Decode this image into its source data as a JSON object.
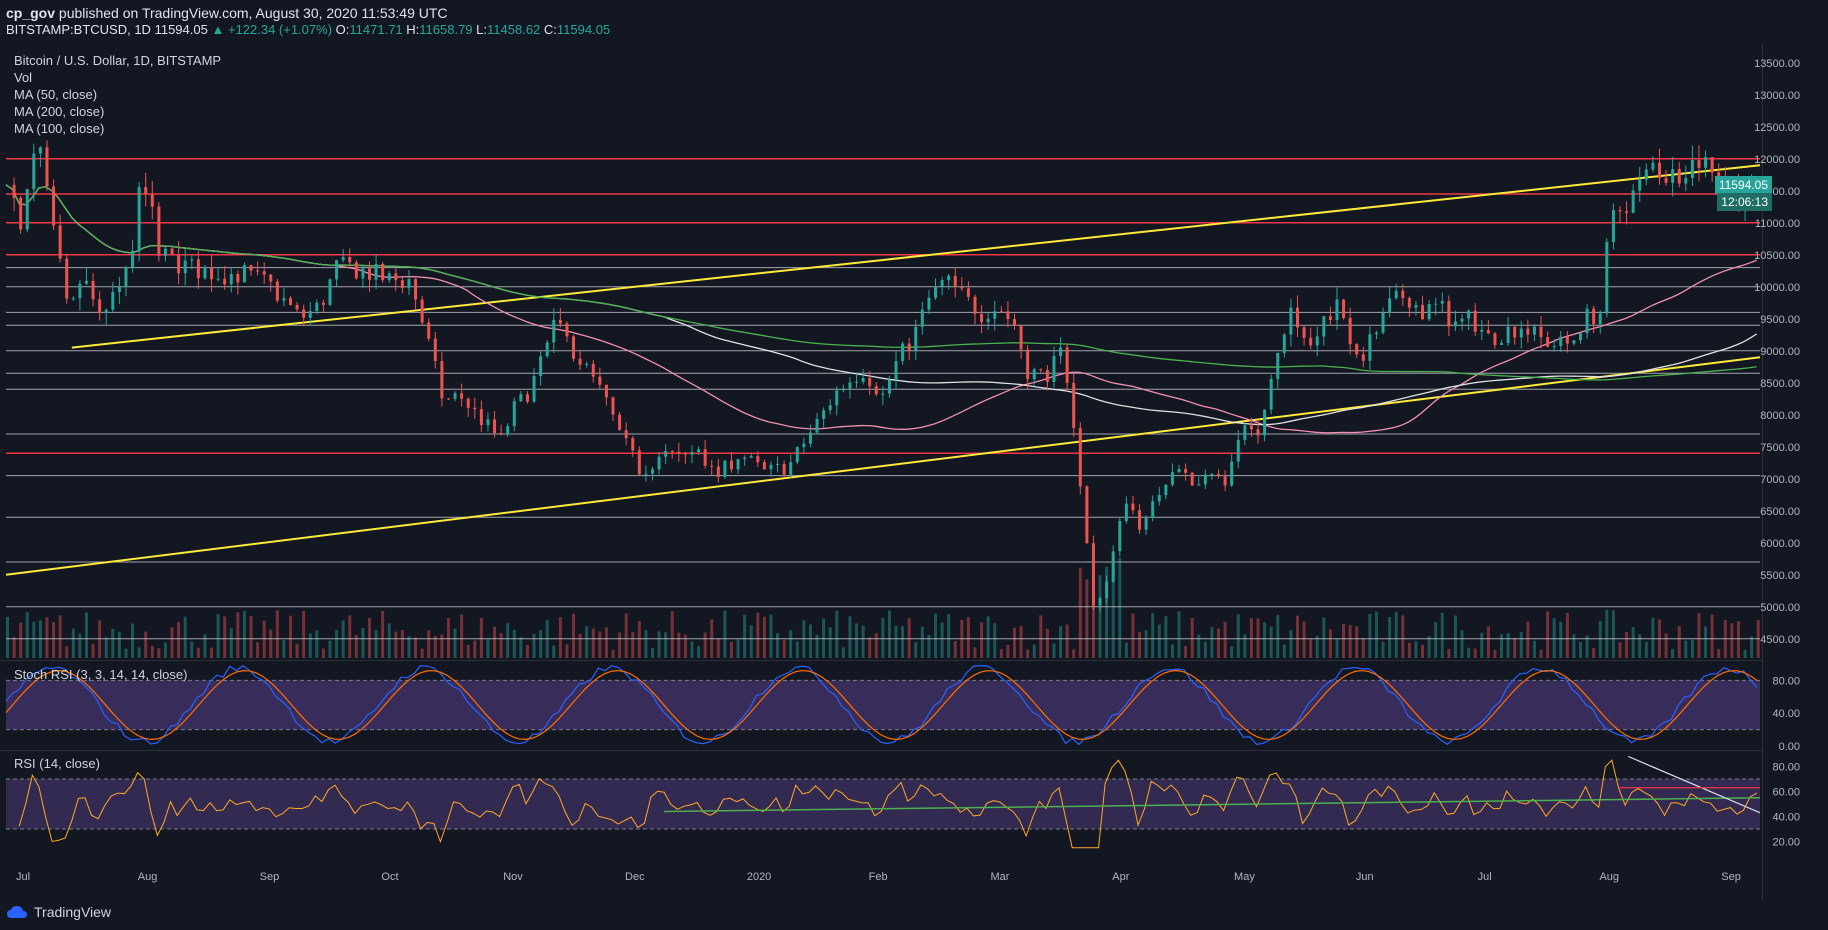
{
  "header": {
    "author": "cp_gov",
    "published_text": "published on TradingView.com, August 30, 2020 11:53:49 UTC",
    "symbol": "BITSTAMP:BTCUSD, 1D",
    "last": "11594.05",
    "change": "▲ +122.34 (+1.07%)",
    "o_label": "O:",
    "o_value": "11471.71",
    "h_label": "H:",
    "h_value": "11658.79",
    "l_label": "L:",
    "l_value": "11458.62",
    "c_label": "C:",
    "c_value": "11594.05"
  },
  "legend": {
    "title": "Bitcoin / U.S. Dollar, 1D, BITSTAMP",
    "vol": "Vol",
    "ma50": "MA (50, close)",
    "ma200": "MA (200, close)",
    "ma100": "MA (100, close)"
  },
  "price_badge": {
    "price": "11594.05",
    "timer": "12:06:13"
  },
  "stoch_label": "Stoch RSI (3, 3, 14, 14, close)",
  "rsi_label": "RSI (14, close)",
  "footer": {
    "brand": "TradingView"
  },
  "colors": {
    "up": "#26a69a",
    "down": "#ef5350",
    "yellow": "#ffeb3b",
    "red_line": "#f23645",
    "ma50": "#f48fb1",
    "ma100": "#e0e0e0",
    "ma200": "#4caf50",
    "stoch_k": "#2962ff",
    "stoch_d": "#ff6d00",
    "rsi": "#ffa726"
  },
  "chart_data": {
    "type": "candlestick",
    "price_axis": {
      "ticks": [
        4500,
        5000,
        5500,
        6000,
        6500,
        7000,
        7500,
        8000,
        8500,
        9000,
        9500,
        10000,
        10500,
        11000,
        11500,
        12000,
        12500,
        13000,
        13500
      ],
      "range": [
        4200,
        13700
      ]
    },
    "x_axis": {
      "labels": [
        "Jul",
        "Aug",
        "Sep",
        "Oct",
        "Nov",
        "Dec",
        "2020",
        "Feb",
        "Mar",
        "Apr",
        "May",
        "Jun",
        "Jul",
        "Aug",
        "Sep"
      ]
    },
    "close_path": [
      [
        0,
        11800
      ],
      [
        8,
        10800
      ],
      [
        18,
        12300
      ],
      [
        28,
        10800
      ],
      [
        38,
        9600
      ],
      [
        45,
        10100
      ],
      [
        55,
        9600
      ],
      [
        65,
        9800
      ],
      [
        75,
        10300
      ],
      [
        82,
        11900
      ],
      [
        92,
        10500
      ],
      [
        110,
        10300
      ],
      [
        130,
        10200
      ],
      [
        145,
        10200
      ],
      [
        160,
        10000
      ],
      [
        178,
        9500
      ],
      [
        190,
        9700
      ],
      [
        200,
        10300
      ],
      [
        210,
        10300
      ],
      [
        222,
        10200
      ],
      [
        232,
        10100
      ],
      [
        245,
        10100
      ],
      [
        255,
        9200
      ],
      [
        265,
        8200
      ],
      [
        275,
        8300
      ],
      [
        285,
        8000
      ],
      [
        300,
        7600
      ],
      [
        308,
        8100
      ],
      [
        315,
        8300
      ],
      [
        323,
        8700
      ],
      [
        332,
        9400
      ],
      [
        342,
        9100
      ],
      [
        352,
        8700
      ],
      [
        362,
        8300
      ],
      [
        372,
        7700
      ],
      [
        385,
        7100
      ],
      [
        398,
        7400
      ],
      [
        410,
        7300
      ],
      [
        420,
        7500
      ],
      [
        430,
        7000
      ],
      [
        445,
        7400
      ],
      [
        460,
        7100
      ],
      [
        475,
        7200
      ],
      [
        490,
        7800
      ],
      [
        505,
        8400
      ],
      [
        520,
        8700
      ],
      [
        532,
        8300
      ],
      [
        540,
        8800
      ],
      [
        552,
        9300
      ],
      [
        560,
        9800
      ],
      [
        570,
        10100
      ],
      [
        582,
        9800
      ],
      [
        592,
        9600
      ],
      [
        602,
        9700
      ],
      [
        612,
        9400
      ],
      [
        620,
        8700
      ],
      [
        630,
        8600
      ],
      [
        640,
        8900
      ],
      [
        648,
        7900
      ],
      [
        660,
        5000
      ],
      [
        668,
        5400
      ],
      [
        680,
        6700
      ],
      [
        690,
        6200
      ],
      [
        700,
        6800
      ],
      [
        710,
        7300
      ],
      [
        722,
        6800
      ],
      [
        730,
        7200
      ],
      [
        740,
        6900
      ],
      [
        750,
        7700
      ],
      [
        760,
        7800
      ],
      [
        770,
        8800
      ],
      [
        780,
        9800
      ],
      [
        790,
        8900
      ],
      [
        800,
        9500
      ],
      [
        810,
        9800
      ],
      [
        820,
        8800
      ],
      [
        830,
        9200
      ],
      [
        840,
        9700
      ],
      [
        850,
        9900
      ],
      [
        860,
        9600
      ],
      [
        870,
        9700
      ],
      [
        880,
        9400
      ],
      [
        890,
        9500
      ],
      [
        900,
        9200
      ],
      [
        910,
        9300
      ],
      [
        920,
        9400
      ],
      [
        930,
        9200
      ],
      [
        940,
        9100
      ],
      [
        950,
        9100
      ],
      [
        958,
        9500
      ],
      [
        968,
        9600
      ],
      [
        974,
        11000
      ],
      [
        980,
        11200
      ],
      [
        990,
        11500
      ],
      [
        1000,
        11900
      ],
      [
        1010,
        11700
      ],
      [
        1020,
        11900
      ],
      [
        1030,
        12000
      ],
      [
        1036,
        11900
      ],
      [
        1044,
        11700
      ],
      [
        1054,
        11300
      ],
      [
        1060,
        11400
      ],
      [
        1066,
        11594
      ]
    ],
    "horizontal_levels_red": [
      12000,
      11450,
      11000,
      10500,
      7400
    ],
    "horizontal_levels_white": [
      10300,
      10000,
      9600,
      9400,
      9000,
      8650,
      8400,
      7700,
      7050,
      6400,
      5700,
      5000,
      4500
    ],
    "stoch_rsi": {
      "ticks": [
        0,
        40,
        80
      ],
      "range": [
        0,
        100
      ]
    },
    "rsi": {
      "ticks": [
        20,
        40,
        60,
        80
      ],
      "range": [
        10,
        90
      ],
      "upper_band": 70,
      "lower_band": 30
    }
  }
}
